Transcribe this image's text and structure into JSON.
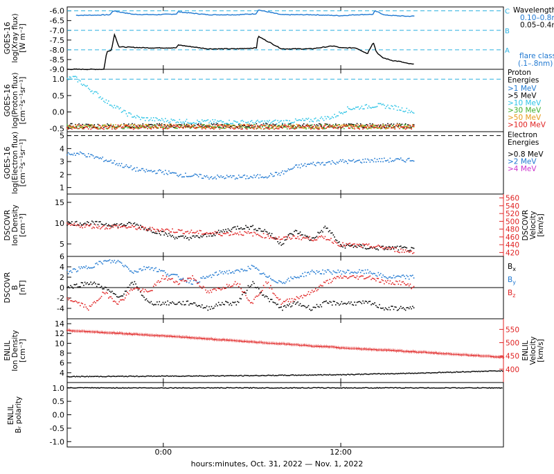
{
  "colors": {
    "black": "#000000",
    "blue": "#1f78d1",
    "cyan": "#2ec4e6",
    "green": "#3fae2a",
    "orange": "#e69a1a",
    "red": "#e02020",
    "magenta": "#cc33cc",
    "dashed_cyan": "#2ab0e0"
  },
  "xaxis": {
    "label": "hours:minutes, Oct. 31, 2022 — Nov. 1, 2022",
    "range_hours": [
      -6.5,
      23
    ],
    "ticks": [
      {
        "hour": 0,
        "label": "0:00"
      },
      {
        "hour": 12,
        "label": "12:00"
      }
    ]
  },
  "chart_data": [
    {
      "id": "xray",
      "type": "line",
      "ylabel_lines": [
        "GOES-16",
        "log(Xray flux)",
        "[W m⁻²]"
      ],
      "ylim": [
        -9.0,
        -5.8
      ],
      "yticks": [
        -6.0,
        -6.5,
        -7.0,
        -7.5,
        -8.0,
        -8.5,
        -9.0
      ],
      "ytick_labels": [
        "-6.0",
        "-6.5",
        "-7.0",
        "-7.5",
        "-8.0",
        "-8.5",
        "-9.0"
      ],
      "hlines": [
        {
          "y": -6.0,
          "letter": "C"
        },
        {
          "y": -7.0,
          "letter": "B"
        },
        {
          "y": -8.0,
          "letter": "A"
        }
      ],
      "legend_title": "Wavelength",
      "series": [
        {
          "name": "0.10–0.8nm",
          "color_key": "blue",
          "x": [
            -5.9,
            -4.5,
            -3.6,
            -3.4,
            -2,
            -0.5,
            0.9,
            1,
            3,
            5,
            6.3,
            6.4,
            8,
            10,
            12,
            13,
            14.2,
            14.3,
            15,
            16.5,
            17
          ],
          "y": [
            -6.23,
            -6.22,
            -6.2,
            -6.0,
            -6.18,
            -6.2,
            -6.16,
            -6.05,
            -6.2,
            -6.2,
            -6.15,
            -5.95,
            -6.2,
            -6.2,
            -6.25,
            -6.2,
            -6.18,
            -6.0,
            -6.22,
            -6.28,
            -6.27
          ]
        },
        {
          "name": "0.05–0.4nm",
          "color_key": "black",
          "x": [
            -6.5,
            -4.0,
            -3.9,
            -3.8,
            -3.5,
            -3.3,
            -3,
            -1,
            0.9,
            1,
            3,
            5,
            6.3,
            6.4,
            8,
            10,
            11.5,
            12,
            13,
            13.3,
            13.8,
            14.2,
            14.4,
            14.8,
            15.5,
            16,
            16.5,
            17
          ],
          "y": [
            -9.0,
            -9.0,
            -8.4,
            -8.1,
            -8.0,
            -7.2,
            -7.85,
            -7.9,
            -7.9,
            -7.75,
            -7.95,
            -7.95,
            -7.9,
            -7.3,
            -7.95,
            -7.95,
            -7.8,
            -7.9,
            -7.9,
            -8.0,
            -8.2,
            -7.6,
            -8.1,
            -8.4,
            -8.55,
            -8.6,
            -8.7,
            -8.75
          ]
        }
      ],
      "right_labels": [
        "flare class",
        "(.1–.8nm)"
      ]
    },
    {
      "id": "protons",
      "type": "scatter",
      "ylabel_lines": [
        "GOES-16",
        "log(Proton flux)",
        "[cm⁻²s⁻¹sr⁻¹]"
      ],
      "ylim": [
        -0.6,
        1.3
      ],
      "yticks": [
        1.0,
        0.5,
        0.0,
        -0.5
      ],
      "ytick_labels": [
        "1.0",
        "0.5",
        "0.0",
        "-0.5"
      ],
      "hlines": [
        {
          "y": 1.0
        }
      ],
      "legend_title": "Proton Energies",
      "series": [
        {
          "name": ">1 MeV",
          "color_key": "blue",
          "x": [],
          "y": []
        },
        {
          "name": ">5 MeV",
          "color_key": "black",
          "x": [
            -6.5,
            17
          ],
          "y": [
            -0.42,
            -0.42
          ]
        },
        {
          "name": ">10 MeV",
          "color_key": "cyan",
          "x": [
            -6.5,
            -6,
            -5.3,
            -4.5,
            -3.8,
            -3.2,
            -2.5,
            -1.5,
            0,
            2,
            4,
            6,
            8,
            10,
            11.5,
            12.5,
            13.5,
            14.5,
            15.5,
            16.5,
            17
          ],
          "y": [
            1.0,
            1.05,
            0.8,
            0.55,
            0.3,
            0.15,
            -0.05,
            -0.2,
            -0.25,
            -0.3,
            -0.3,
            -0.32,
            -0.3,
            -0.25,
            -0.15,
            0.1,
            0.15,
            0.2,
            0.15,
            0.05,
            0.0
          ]
        },
        {
          "name": ">30 MeV",
          "color_key": "green",
          "x": [
            -6.5,
            17
          ],
          "y": [
            -0.45,
            -0.45
          ]
        },
        {
          "name": ">50 MeV",
          "color_key": "orange",
          "x": [
            -6.5,
            17
          ],
          "y": [
            -0.44,
            -0.44
          ]
        },
        {
          "name": ">100 MeV",
          "color_key": "red",
          "x": [
            -6.5,
            17
          ],
          "y": [
            -0.46,
            -0.46
          ]
        }
      ]
    },
    {
      "id": "electrons",
      "type": "scatter",
      "ylabel_lines": [
        "GOES-16",
        "log(Electron flux)",
        "[cm⁻²s⁻¹sr⁻¹]"
      ],
      "ylim": [
        0.5,
        5.3
      ],
      "yticks": [
        5,
        4,
        3,
        2,
        1
      ],
      "ytick_labels": [
        "5",
        "4",
        "3",
        "2",
        "1"
      ],
      "hlines": [
        {
          "y": 5.0,
          "dashed": true
        }
      ],
      "legend_title": "Electron Energies",
      "series": [
        {
          "name": ">0.8 MeV",
          "color_key": "black",
          "x": [],
          "y": []
        },
        {
          "name": ">2 MeV",
          "color_key": "blue",
          "x": [
            -6.5,
            -5.5,
            -4.5,
            -3.5,
            -2.5,
            -1.5,
            0,
            1,
            2,
            3,
            4,
            5,
            6,
            7,
            8,
            9,
            10,
            11,
            12,
            13,
            14,
            15,
            16,
            17
          ],
          "y": [
            3.6,
            3.6,
            3.3,
            3.0,
            2.6,
            2.3,
            2.2,
            2.0,
            1.9,
            1.8,
            1.8,
            1.8,
            1.8,
            1.9,
            2.1,
            2.6,
            2.8,
            2.9,
            3.0,
            3.0,
            3.1,
            3.1,
            3.1,
            3.15
          ]
        },
        {
          "name": ">4 MeV",
          "color_key": "magenta",
          "x": [],
          "y": []
        }
      ]
    },
    {
      "id": "dscovr_density",
      "type": "scatter",
      "ylabel_lines": [
        "DSCOVR",
        "Ion Density",
        "[cm⁻³]"
      ],
      "ylim": [
        2,
        17
      ],
      "yticks": [
        15,
        10,
        5
      ],
      "ytick_labels": [
        "15",
        "10",
        "5"
      ],
      "right_axis": {
        "label_lines": [
          "DSCOVR",
          "Velocity",
          "[km/s]"
        ],
        "ylim": [
          410,
          570
        ],
        "ticks": [
          560,
          540,
          520,
          500,
          480,
          460,
          440,
          420
        ],
        "tick_labels": [
          "560",
          "540",
          "520",
          "500",
          "480",
          "460",
          "440",
          "420"
        ]
      },
      "series": [
        {
          "name": "Ion Density",
          "color_key": "black",
          "x": [
            -6.5,
            -5,
            -4,
            -3,
            -2,
            -1,
            0,
            1,
            2,
            3,
            4,
            5,
            6,
            7,
            8,
            8.5,
            9,
            10,
            11,
            11.5,
            12,
            13,
            14,
            15,
            16,
            17
          ],
          "y": [
            10,
            10,
            9.8,
            9.5,
            9.8,
            8.5,
            7.5,
            6.5,
            6.5,
            7,
            8,
            9,
            9,
            8,
            5,
            7,
            8,
            6,
            9,
            7,
            4.5,
            4.5,
            4,
            4,
            4,
            3.5
          ]
        },
        {
          "name": "Velocity",
          "color_key": "red",
          "axis": "right",
          "x": [
            -6.5,
            -5,
            -4,
            -3,
            -2,
            -1,
            0,
            1,
            2,
            3,
            4,
            5,
            6,
            7,
            8,
            9,
            10,
            11,
            12,
            13,
            14,
            15,
            16,
            17
          ],
          "y": [
            490,
            488,
            485,
            487,
            484,
            480,
            478,
            475,
            472,
            470,
            468,
            470,
            468,
            462,
            455,
            460,
            455,
            458,
            440,
            438,
            436,
            432,
            425,
            422
          ]
        }
      ]
    },
    {
      "id": "dscovr_b",
      "type": "scatter",
      "ylabel_lines": [
        "DSCOVR",
        "B",
        "[nT]"
      ],
      "ylim": [
        -6,
        6
      ],
      "yticks": [
        6,
        4,
        2,
        0,
        -2,
        -4
      ],
      "ytick_labels": [
        "6",
        "4",
        "2",
        "0",
        "-2",
        "-4"
      ],
      "hlines": [
        {
          "y": 0
        }
      ],
      "series": [
        {
          "name": "Bx",
          "color_key": "black",
          "x": [
            -6.5,
            -5,
            -4,
            -3,
            -2,
            -1,
            0,
            1,
            2,
            3,
            4,
            5,
            6,
            7,
            8,
            9,
            10,
            11,
            12,
            13,
            14,
            15,
            16,
            17
          ],
          "y": [
            0,
            1,
            0,
            -2,
            1,
            -3,
            -3,
            -3,
            -3,
            -4,
            -3,
            -3,
            1,
            -2,
            -4,
            -3,
            -4,
            -3,
            -3,
            -3,
            -3,
            -4,
            -4,
            -4
          ]
        },
        {
          "name": "By",
          "color_key": "blue",
          "x": [
            -6.5,
            -5,
            -4,
            -3,
            -2,
            -1,
            0,
            1,
            2,
            3,
            4,
            5,
            6,
            7,
            8,
            9,
            10,
            11,
            12,
            13,
            14,
            15,
            16,
            17
          ],
          "y": [
            3,
            4,
            5,
            5,
            3,
            4,
            3,
            2,
            1,
            2,
            3,
            3,
            4,
            2,
            1,
            2,
            3,
            3,
            3,
            3,
            3,
            2,
            2,
            2
          ]
        },
        {
          "name": "Bz",
          "color_key": "red",
          "x": [
            -6.5,
            -5,
            -4,
            -3,
            -2,
            -1,
            0,
            1,
            2,
            3,
            4,
            5,
            6,
            7,
            8,
            9,
            10,
            11,
            12,
            13,
            14,
            15,
            16,
            17
          ],
          "y": [
            -2,
            -4,
            -1,
            -3,
            0,
            -1,
            2,
            1,
            2,
            -1,
            0,
            1,
            -3,
            1,
            -3,
            -2,
            -1,
            1,
            2,
            2,
            2,
            1,
            1,
            0
          ]
        }
      ],
      "legend": [
        {
          "label": "B",
          "sub": "x",
          "color_key": "black"
        },
        {
          "label": "B",
          "sub": "y",
          "color_key": "blue"
        },
        {
          "label": "B",
          "sub": "z",
          "color_key": "red"
        }
      ]
    },
    {
      "id": "enlil_density",
      "type": "line",
      "ylabel_lines": [
        "ENLIL",
        "Ion Density",
        "[cm⁻³]"
      ],
      "ylim": [
        2,
        15
      ],
      "yticks": [
        14,
        12,
        10,
        8,
        6,
        4
      ],
      "ytick_labels": [
        "14",
        "12",
        "10",
        "8",
        "6",
        "4"
      ],
      "right_axis": {
        "label_lines": [
          "ENLIL",
          "Velocity",
          "[km/s]"
        ],
        "ylim": [
          350,
          590
        ],
        "ticks": [
          550,
          500,
          450,
          400
        ],
        "tick_labels": [
          "550",
          "500",
          "450",
          "400"
        ]
      },
      "series": [
        {
          "name": "Ion Density",
          "color_key": "black",
          "x": [
            -6.5,
            0,
            6,
            12,
            17,
            23
          ],
          "y": [
            3.2,
            3.3,
            3.4,
            3.6,
            3.9,
            4.4
          ]
        },
        {
          "name": "Velocity",
          "color_key": "red",
          "axis": "right",
          "x": [
            -6.5,
            0,
            6,
            12,
            17,
            23
          ],
          "y": [
            548,
            528,
            505,
            483,
            468,
            447
          ]
        }
      ]
    },
    {
      "id": "enlil_polarity",
      "type": "line",
      "ylabel_lines": [
        "ENLIL",
        "Bᵣ polarity"
      ],
      "ylim": [
        -1.2,
        1.2
      ],
      "yticks": [
        1.0,
        0.5,
        0.0,
        -0.5,
        -1.0
      ],
      "ytick_labels": [
        "1.0",
        "0.5",
        "0.0",
        "-0.5",
        "-1.0"
      ],
      "series": [
        {
          "name": "Br polarity",
          "color_key": "black",
          "x": [
            -6.5,
            23
          ],
          "y": [
            1.0,
            1.0
          ]
        }
      ]
    }
  ]
}
